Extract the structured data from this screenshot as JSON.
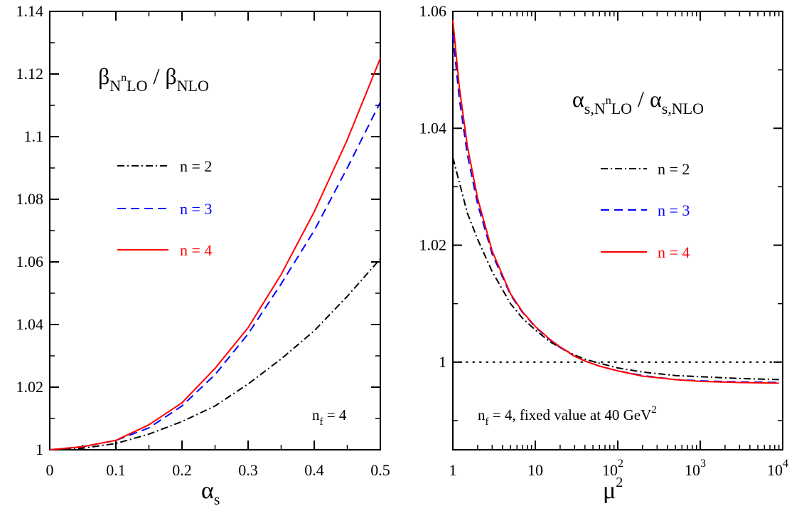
{
  "chart_data": [
    {
      "type": "line",
      "title": {
        "main": "β",
        "sub1": "N",
        "sup": "n",
        "sub2": "LO",
        "sep": " / ",
        "main2": "β",
        "sub3": "NLO"
      },
      "xlabel": {
        "main": "α",
        "sub": "s"
      },
      "ylabel": "",
      "xlim": [
        0,
        0.5
      ],
      "ylim": [
        1,
        1.14
      ],
      "xscale": "linear",
      "x_ticks": [
        0,
        0.1,
        0.2,
        0.3,
        0.4,
        0.5
      ],
      "x_tick_labels": [
        "0",
        "0.1",
        "0.2",
        "0.3",
        "0.4",
        "0.5"
      ],
      "y_ticks": [
        1,
        1.02,
        1.04,
        1.06,
        1.08,
        1.1,
        1.12,
        1.14
      ],
      "y_tick_labels": [
        "1",
        "1.02",
        "1.04",
        "1.06",
        "1.08",
        "1.1",
        "1.12",
        "1.14"
      ],
      "annotation": {
        "main": "n",
        "sub": "f",
        "rest": " = 4"
      },
      "series": [
        {
          "name": "n = 2",
          "color": "#000000",
          "style": "dashdot",
          "x": [
            0,
            0.05,
            0.1,
            0.15,
            0.2,
            0.25,
            0.3,
            0.35,
            0.4,
            0.45,
            0.5
          ],
          "y": [
            1.0,
            1.0005,
            1.002,
            1.005,
            1.009,
            1.014,
            1.021,
            1.029,
            1.038,
            1.049,
            1.061
          ]
        },
        {
          "name": "n = 3",
          "color": "#0000ff",
          "style": "dashed",
          "x": [
            0,
            0.05,
            0.1,
            0.15,
            0.2,
            0.25,
            0.3,
            0.35,
            0.4,
            0.45,
            0.5
          ],
          "y": [
            1.0,
            1.001,
            1.003,
            1.007,
            1.014,
            1.024,
            1.037,
            1.053,
            1.07,
            1.09,
            1.111
          ]
        },
        {
          "name": "n = 4",
          "color": "#ff0000",
          "style": "solid",
          "x": [
            0,
            0.05,
            0.1,
            0.15,
            0.2,
            0.25,
            0.3,
            0.35,
            0.4,
            0.45,
            0.5
          ],
          "y": [
            1.0,
            1.001,
            1.003,
            1.008,
            1.015,
            1.026,
            1.039,
            1.056,
            1.076,
            1.099,
            1.125
          ]
        }
      ]
    },
    {
      "type": "line",
      "title": {
        "main": "α",
        "sub1": "s,N",
        "sup": "n",
        "sub2": "LO",
        "sep": " / ",
        "main2": "α",
        "sub3": "s,NLO"
      },
      "xlabel": {
        "main": "μ",
        "sup": "2"
      },
      "ylabel": "",
      "xlim": [
        1,
        10000
      ],
      "ylim": [
        0.985,
        1.06
      ],
      "xscale": "log",
      "x_ticks": [
        1,
        10,
        100,
        1000,
        10000
      ],
      "x_tick_labels": [
        {
          "base": "1",
          "exp": ""
        },
        {
          "base": "10",
          "exp": ""
        },
        {
          "base": "10",
          "exp": "2"
        },
        {
          "base": "10",
          "exp": "3"
        },
        {
          "base": "10",
          "exp": "4"
        }
      ],
      "y_ticks": [
        1,
        1.02,
        1.04,
        1.06
      ],
      "y_tick_labels": [
        "1",
        "1.02",
        "1.04",
        "1.06"
      ],
      "reference_line": {
        "y": 1,
        "style": "dotted",
        "color": "#000000"
      },
      "annotation": {
        "main": "n",
        "sub": "f",
        "rest": " = 4, fixed value at 40 GeV",
        "sup": "2"
      },
      "series": [
        {
          "name": "n = 2",
          "color": "#000000",
          "style": "dashdot",
          "x": [
            1,
            1.5,
            2,
            3,
            5,
            7,
            10,
            15,
            20,
            30,
            40,
            60,
            100,
            200,
            500,
            1000,
            3000,
            9000
          ],
          "y": [
            1.035,
            1.0255,
            1.021,
            1.0155,
            1.01,
            1.0075,
            1.0055,
            1.0035,
            1.0025,
            1.0012,
            1.0005,
            0.9998,
            0.999,
            0.9983,
            0.9977,
            0.9975,
            0.9972,
            0.997
          ]
        },
        {
          "name": "n = 3",
          "color": "#0000ff",
          "style": "dashed",
          "x": [
            1,
            1.2,
            1.5,
            2,
            3,
            5,
            7,
            10,
            15,
            20,
            30,
            40,
            60,
            100,
            200,
            500,
            1000,
            3000,
            9000
          ],
          "y": [
            1.056,
            1.045,
            1.0355,
            1.027,
            1.0185,
            1.0115,
            1.0085,
            1.006,
            1.0038,
            1.0025,
            1.001,
            1.0002,
            0.9993,
            0.9985,
            0.9977,
            0.997,
            0.9968,
            0.9966,
            0.9965
          ]
        },
        {
          "name": "n = 4",
          "color": "#ff0000",
          "style": "solid",
          "x": [
            1,
            1.2,
            1.5,
            2,
            3,
            5,
            7,
            10,
            15,
            20,
            30,
            40,
            60,
            100,
            200,
            500,
            1000,
            3000,
            9000
          ],
          "y": [
            1.0585,
            1.047,
            1.037,
            1.028,
            1.019,
            1.0117,
            1.0086,
            1.0061,
            1.0039,
            1.0026,
            1.001,
            1.0002,
            0.9993,
            0.9985,
            0.9976,
            0.997,
            0.9967,
            0.9965,
            0.9964
          ]
        }
      ]
    }
  ]
}
